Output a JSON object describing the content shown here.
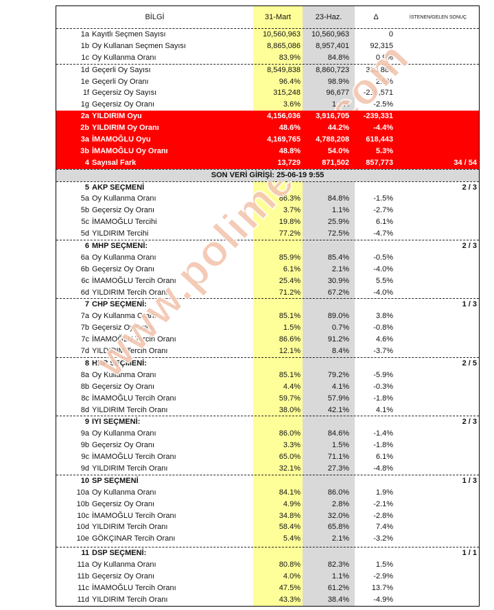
{
  "header": {
    "info": "BİLGİ",
    "col1": "31-Mart",
    "col2": "23-Haz.",
    "col3": "Δ",
    "col4": "İSTENEN/GELEN SONUÇ"
  },
  "watermark": "www.polimetre.com",
  "colors": {
    "red": "#ff0000",
    "yellow": "#ffff99",
    "gray": "#d9d9d9"
  },
  "rows": [
    {
      "t": "n",
      "code": "1a",
      "label": "Kayıtlı Seçmen Sayısı",
      "v1": "10,560,963",
      "v2": "10,560,963",
      "d": "0",
      "r": ""
    },
    {
      "t": "n",
      "code": "1b",
      "label": "Oy Kullanan Seçmen Sayısı",
      "v1": "8,865,086",
      "v2": "8,957,401",
      "d": "92,315",
      "r": ""
    },
    {
      "t": "n",
      "code": "1c",
      "label": "Oy Kullanma Oranı",
      "v1": "83.9%",
      "v2": "84.8%",
      "d": "0.9%",
      "r": ""
    },
    {
      "t": "n",
      "dash": true,
      "code": "1d",
      "label": "Geçerli Oy Sayısı",
      "v1": "8,549,838",
      "v2": "8,860,723",
      "d": "310,885",
      "r": ""
    },
    {
      "t": "n",
      "code": "1e",
      "label": "Geçerli Oy Oranı",
      "v1": "96.4%",
      "v2": "98.9%",
      "d": "2.5%",
      "r": ""
    },
    {
      "t": "n",
      "code": "1f",
      "label": "Geçersiz Oy Sayısı",
      "v1": "315,248",
      "v2": "96,677",
      "d": "-218,571",
      "r": ""
    },
    {
      "t": "n",
      "code": "1g",
      "label": "Geçersiz Oy Oranı",
      "v1": "3.6%",
      "v2": "1.1%",
      "d": "-2.5%",
      "r": ""
    },
    {
      "t": "red",
      "code": "2a",
      "label": "YILDIRIM Oyu",
      "v1": "4,156,036",
      "v2": "3,916,705",
      "d": "-239,331",
      "r": ""
    },
    {
      "t": "red",
      "code": "2b",
      "label": "YILDIRIM Oy Oranı",
      "v1": "48.6%",
      "v2": "44.2%",
      "d": "-4.4%",
      "r": ""
    },
    {
      "t": "red",
      "code": "3a",
      "label": "İMAMOĞLU Oyu",
      "v1": "4,169,765",
      "v2": "4,788,208",
      "d": "618,443",
      "r": ""
    },
    {
      "t": "red",
      "code": "3b",
      "label": "İMAMOĞLU Oy Oranı",
      "v1": "48.8%",
      "v2": "54.0%",
      "d": "5.3%",
      "r": ""
    },
    {
      "t": "red",
      "code": "4",
      "label": "Sayısal Fark",
      "v1": "13,729",
      "v2": "871,502",
      "d": "857,773",
      "r": "34 / 54"
    },
    {
      "t": "son",
      "label": "SON VERİ GİRİŞİ:  25-06-19 9:55"
    },
    {
      "t": "sec",
      "dash": true,
      "code": "5",
      "label": "AKP SEÇMENİ",
      "v1": "",
      "v2": "",
      "d": "",
      "r": "2 / 3"
    },
    {
      "t": "n",
      "code": "5a",
      "label": "Oy Kullanma Oranı",
      "v1": "86.3%",
      "v2": "84.8%",
      "d": "-1.5%",
      "r": ""
    },
    {
      "t": "n",
      "code": "5b",
      "label": "Geçersiz Oy Oranı",
      "v1": "3.7%",
      "v2": "1.1%",
      "d": "-2.7%",
      "r": ""
    },
    {
      "t": "n",
      "code": "5c",
      "label": "İMAMOĞLU Tercihi",
      "v1": "19.8%",
      "v2": "25.9%",
      "d": "6.1%",
      "r": ""
    },
    {
      "t": "n",
      "code": "5d",
      "label": "YILDIRIM Tercihi",
      "v1": "77.2%",
      "v2": "72.5%",
      "d": "-4.7%",
      "r": ""
    },
    {
      "t": "sec",
      "dash": true,
      "code": "6",
      "label": "MHP SEÇMENİ:",
      "v1": "",
      "v2": "",
      "d": "",
      "r": "2 / 3"
    },
    {
      "t": "n",
      "code": "6a",
      "label": "Oy Kullanma Oranı",
      "v1": "85.9%",
      "v2": "85.4%",
      "d": "-0.5%",
      "r": ""
    },
    {
      "t": "n",
      "code": "6b",
      "label": "Geçersiz Oy Oranı",
      "v1": "6.1%",
      "v2": "2.1%",
      "d": "-4.0%",
      "r": ""
    },
    {
      "t": "n",
      "code": "6c",
      "label": "İMAMOĞLU Tercih Oranı",
      "v1": "25.4%",
      "v2": "30.9%",
      "d": "5.5%",
      "r": ""
    },
    {
      "t": "n",
      "code": "6d",
      "label": "YILDIRIM Tercih Oranı",
      "v1": "71.2%",
      "v2": "67.2%",
      "d": "-4.0%",
      "r": ""
    },
    {
      "t": "sec",
      "dash": true,
      "code": "7",
      "label": "CHP SEÇMENİ:",
      "v1": "",
      "v2": "",
      "d": "",
      "r": "1 / 3"
    },
    {
      "t": "n",
      "code": "7a",
      "label": "Oy Kullanma Oranı",
      "v1": "85.1%",
      "v2": "89.0%",
      "d": "3.8%",
      "r": ""
    },
    {
      "t": "n",
      "code": "7b",
      "label": "Geçersiz Oy Oranı",
      "v1": "1.5%",
      "v2": "0.7%",
      "d": "-0.8%",
      "r": ""
    },
    {
      "t": "n",
      "code": "7c",
      "label": "İMAMOĞLU Tercih Oranı",
      "v1": "86.6%",
      "v2": "91.2%",
      "d": "4.6%",
      "r": ""
    },
    {
      "t": "n",
      "code": "7d",
      "label": "YILDIRIM Tercih Oranı",
      "v1": "12.1%",
      "v2": "8.4%",
      "d": "-3.7%",
      "r": ""
    },
    {
      "t": "sec",
      "dash": true,
      "code": "8",
      "label": "HDP SEÇMENİ:",
      "v1": "",
      "v2": "",
      "d": "",
      "r": "2 / 5"
    },
    {
      "t": "n",
      "code": "8a",
      "label": "Oy Kullanma Oranı",
      "v1": "85.1%",
      "v2": "79.2%",
      "d": "-5.9%",
      "r": ""
    },
    {
      "t": "n",
      "code": "8b",
      "label": "Geçersiz Oy Oranı",
      "v1": "4.4%",
      "v2": "4.1%",
      "d": "-0.3%",
      "r": ""
    },
    {
      "t": "n",
      "code": "8c",
      "label": "İMAMOĞLU Tercih Oranı",
      "v1": "59.7%",
      "v2": "57.9%",
      "d": "-1.8%",
      "r": ""
    },
    {
      "t": "n",
      "code": "8d",
      "label": "YILDIRIM Tercih Oranı",
      "v1": "38.0%",
      "v2": "42.1%",
      "d": "4.1%",
      "r": ""
    },
    {
      "t": "sec",
      "dash": true,
      "code": "9",
      "label": "IYI SEÇMENİ:",
      "v1": "",
      "v2": "",
      "d": "",
      "r": "2 / 3"
    },
    {
      "t": "n",
      "code": "9a",
      "label": "Oy Kullanma Oranı",
      "v1": "86.0%",
      "v2": "84.6%",
      "d": "-1.4%",
      "r": ""
    },
    {
      "t": "n",
      "code": "9b",
      "label": "Geçersiz Oy Oranı",
      "v1": "3.3%",
      "v2": "1.5%",
      "d": "-1.8%",
      "r": ""
    },
    {
      "t": "n",
      "code": "9c",
      "label": "İMAMOĞLU Tercih Oranı",
      "v1": "65.0%",
      "v2": "71.1%",
      "d": "6.1%",
      "r": ""
    },
    {
      "t": "n",
      "code": "9d",
      "label": "YILDIRIM Tercih Oranı",
      "v1": "32.1%",
      "v2": "27.3%",
      "d": "-4.8%",
      "r": ""
    },
    {
      "t": "sec",
      "dash": true,
      "code": "10",
      "label": "SP SEÇMENİ",
      "v1": "",
      "v2": "",
      "d": "",
      "r": "1 / 3"
    },
    {
      "t": "n",
      "code": "10a",
      "label": "Oy Kullanma Oranı",
      "v1": "84.1%",
      "v2": "86.0%",
      "d": "1.9%",
      "r": ""
    },
    {
      "t": "n",
      "code": "10b",
      "label": "Geçersiz Oy Oranı",
      "v1": "4.9%",
      "v2": "2.8%",
      "d": "-2.1%",
      "r": ""
    },
    {
      "t": "n",
      "code": "10c",
      "label": "İMAMOĞLU Tercih Oranı",
      "v1": "34.8%",
      "v2": "32.0%",
      "d": "-2.8%",
      "r": ""
    },
    {
      "t": "n",
      "code": "10d",
      "label": "YILDIRIM Tercih Oranı",
      "v1": "58.4%",
      "v2": "65.8%",
      "d": "7.4%",
      "r": ""
    },
    {
      "t": "n",
      "code": "10e",
      "label": "GÖKÇINAR Tercih Oranı",
      "v1": "5.4%",
      "v2": "2.1%",
      "d": "-3.2%",
      "r": ""
    },
    {
      "t": "sec",
      "dash": true,
      "gap": true,
      "code": "11",
      "label": "DSP SEÇMENİ:",
      "v1": "",
      "v2": "",
      "d": "",
      "r": "1 / 1"
    },
    {
      "t": "n",
      "code": "11a",
      "label": "Oy Kullanma Oranı",
      "v1": "80.8%",
      "v2": "82.3%",
      "d": "1.5%",
      "r": ""
    },
    {
      "t": "n",
      "code": "11b",
      "label": "Geçersiz Oy Oranı",
      "v1": "4.0%",
      "v2": "1.1%",
      "d": "-2.9%",
      "r": ""
    },
    {
      "t": "n",
      "code": "11c",
      "label": "İMAMOĞLU Tercih Oranı",
      "v1": "47.5%",
      "v2": "61.2%",
      "d": "13.7%",
      "r": ""
    },
    {
      "t": "n",
      "code": "11d",
      "label": "YILDIRIM Tercih Oranı",
      "v1": "43.3%",
      "v2": "38.4%",
      "d": "-4.9%",
      "r": ""
    }
  ]
}
